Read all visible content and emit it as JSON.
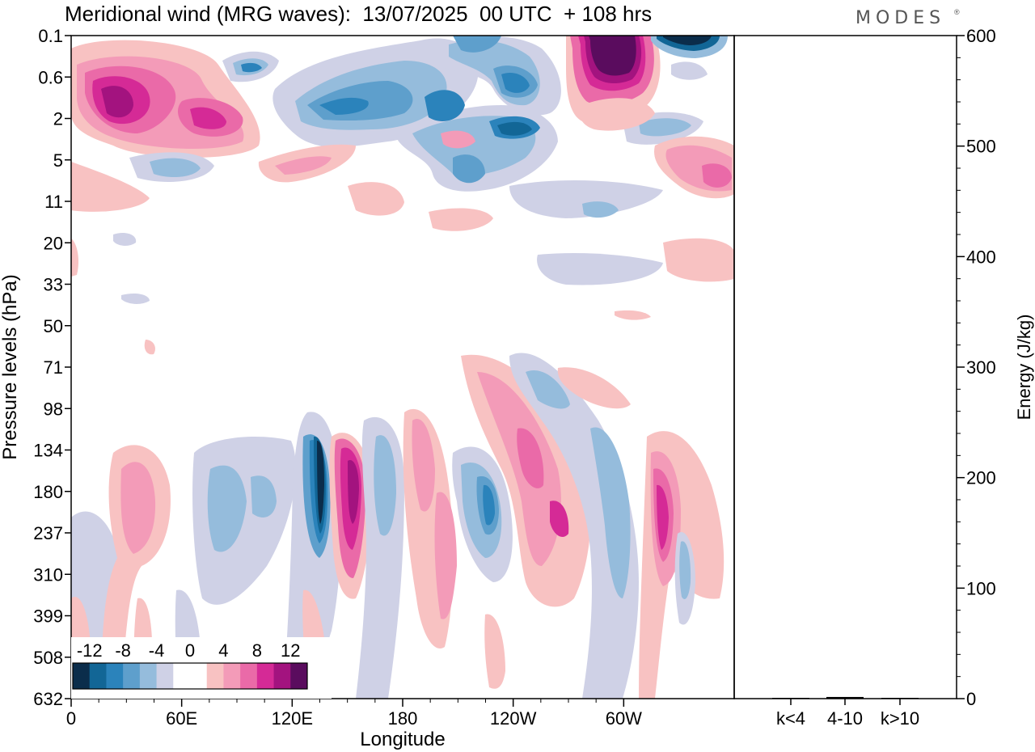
{
  "header": {
    "title": "Meridional wind (MRG waves):  13/07/2025  00 UTC  + 108 hrs",
    "brand": "MODES"
  },
  "chart_data": [
    {
      "type": "heatmap",
      "title": "Meridional wind (MRG waves):  13/07/2025  00 UTC  + 108 hrs",
      "xlabel": "Longitude",
      "ylabel": "Pressure levels (hPa)",
      "x_ticks": [
        "0",
        "60E",
        "120E",
        "180",
        "120W",
        "60W"
      ],
      "x_tick_values": [
        0,
        60,
        120,
        180,
        240,
        300
      ],
      "xlim": [
        0,
        360
      ],
      "y_ticks": [
        "0.1",
        "0.6",
        "2",
        "5",
        "11",
        "20",
        "33",
        "50",
        "71",
        "98",
        "134",
        "180",
        "237",
        "310",
        "399",
        "508",
        "632"
      ],
      "colorbar": {
        "labels": [
          "-12",
          "-8",
          "-4",
          "0",
          "4",
          "8",
          "12"
        ],
        "levels": [
          -14,
          -12,
          -10,
          -8,
          -6,
          -4,
          -2,
          0,
          2,
          4,
          6,
          8,
          10,
          12,
          14
        ],
        "colors": [
          "#0b2d4b",
          "#126696",
          "#2b83bb",
          "#5e9fcc",
          "#95bcdc",
          "#cfd1e6",
          "#ffffff",
          "#ffffff",
          "#f8c2c2",
          "#f39bb8",
          "#ea6aa8",
          "#d52a96",
          "#a3137f",
          "#5a0c5e"
        ]
      },
      "features": [
        {
          "center_lon": 20,
          "center_level": "0.6-2",
          "value": 12
        },
        {
          "center_lon": 50,
          "center_level": "2",
          "value": 8
        },
        {
          "center_lon": 235,
          "center_level": "0.1-0.6",
          "value": 12
        },
        {
          "center_lon": 320,
          "center_level": "0.1",
          "value": -12
        },
        {
          "center_lon": 145,
          "center_level": "2",
          "value": -6
        },
        {
          "center_lon": 205,
          "center_level": "0.6-2",
          "value": -8
        },
        {
          "center_lon": 240,
          "center_level": "0.6",
          "value": -10
        },
        {
          "center_lon": 138,
          "center_level": "134-237",
          "value": -14
        },
        {
          "center_lon": 152,
          "center_level": "180",
          "value": 12
        },
        {
          "center_lon": 228,
          "center_level": "180-237",
          "value": -8
        },
        {
          "center_lon": 255,
          "center_level": "134-237",
          "value": 8
        },
        {
          "center_lon": 320,
          "center_level": "180-237",
          "value": 10
        },
        {
          "center_lon": 37,
          "center_level": "134-237",
          "value": 6
        },
        {
          "center_lon": 197,
          "center_level": "180-237",
          "value": 6
        }
      ]
    },
    {
      "type": "bar",
      "ylabel": "Energy (J/kg)",
      "categories": [
        "k<4",
        "4-10",
        "k>10"
      ],
      "values": [
        0.5,
        1.5,
        0.5
      ],
      "ylim": [
        0,
        600
      ],
      "y_ticks": [
        "0",
        "100",
        "200",
        "300",
        "400",
        "500",
        "600"
      ]
    }
  ]
}
